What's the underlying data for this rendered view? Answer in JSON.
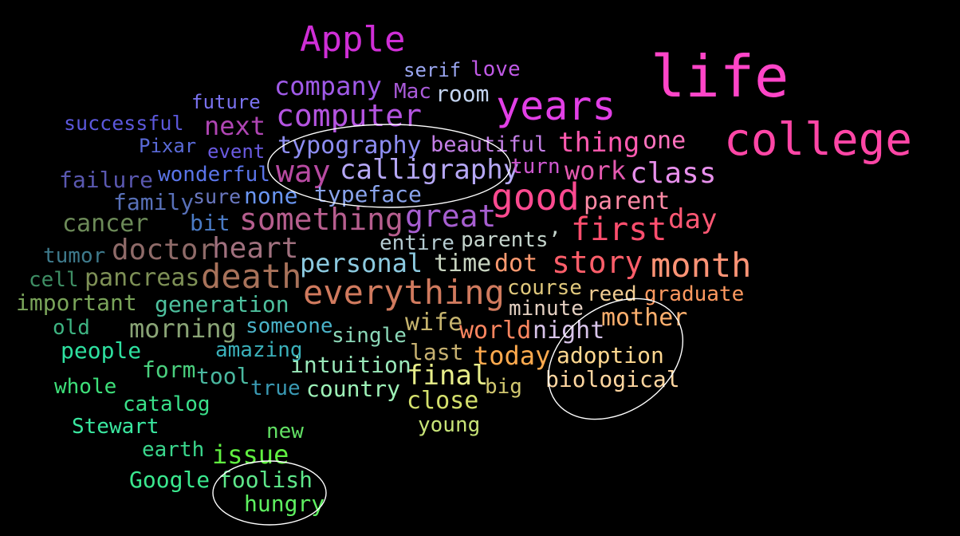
{
  "background_color": "#000000",
  "highlight_color": "#ffffff",
  "words": [
    {
      "text": "life",
      "color": "#ff45c8"
    },
    {
      "text": "college",
      "color": "#ff46a6"
    },
    {
      "text": "Apple",
      "color": "#cf2ed6"
    },
    {
      "text": "years",
      "color": "#e23fe6"
    },
    {
      "text": "serif",
      "color": "#9aa6f0"
    },
    {
      "text": "love",
      "color": "#c05ae6"
    },
    {
      "text": "company",
      "color": "#a05ae8"
    },
    {
      "text": "Mac",
      "color": "#a95ad8"
    },
    {
      "text": "room",
      "color": "#c4d4f0"
    },
    {
      "text": "future",
      "color": "#7a72f0"
    },
    {
      "text": "computer",
      "color": "#b454e0"
    },
    {
      "text": "successful",
      "color": "#5c58dc"
    },
    {
      "text": "next",
      "color": "#b045b4"
    },
    {
      "text": "thing",
      "color": "#ff5ab0"
    },
    {
      "text": "one",
      "color": "#ff72be"
    },
    {
      "text": "Pixar",
      "color": "#5a6ad8"
    },
    {
      "text": "event",
      "color": "#6a5ae0"
    },
    {
      "text": "typography",
      "color": "#8e8ef2"
    },
    {
      "text": "beautiful",
      "color": "#c580e8"
    },
    {
      "text": "failure",
      "color": "#5a58b0"
    },
    {
      "text": "wonderful",
      "color": "#5a74e8"
    },
    {
      "text": "way",
      "color": "#b84aa2"
    },
    {
      "text": "calligraphy",
      "color": "#b6a8f6"
    },
    {
      "text": "turn",
      "color": "#cf58d0"
    },
    {
      "text": "work",
      "color": "#e45ab0"
    },
    {
      "text": "class",
      "color": "#e890ec"
    },
    {
      "text": "family",
      "color": "#5870b8"
    },
    {
      "text": "sure",
      "color": "#6a78c0"
    },
    {
      "text": "none",
      "color": "#6a96f2"
    },
    {
      "text": "typeface",
      "color": "#8aa4ec"
    },
    {
      "text": "good",
      "color": "#ff4a90"
    },
    {
      "text": "parent",
      "color": "#ff8aa6"
    },
    {
      "text": "cancer",
      "color": "#6c8a58"
    },
    {
      "text": "bit",
      "color": "#4a7ac4"
    },
    {
      "text": "something",
      "color": "#b65e8e"
    },
    {
      "text": "great",
      "color": "#a65ed0"
    },
    {
      "text": "first",
      "color": "#ff4e6e"
    },
    {
      "text": "day",
      "color": "#ff5874"
    },
    {
      "text": "tumor",
      "color": "#3e7a8c"
    },
    {
      "text": "doctor",
      "color": "#8e6a68"
    },
    {
      "text": "heart",
      "color": "#a0707e"
    },
    {
      "text": "entire",
      "color": "#b6ccd2"
    },
    {
      "text": "parents’",
      "color": "#c4d4cc"
    },
    {
      "text": "cell",
      "color": "#3e8e64"
    },
    {
      "text": "pancreas",
      "color": "#7e9056"
    },
    {
      "text": "death",
      "color": "#a8725a"
    },
    {
      "text": "personal",
      "color": "#8ccae0"
    },
    {
      "text": "time",
      "color": "#c8d4c0"
    },
    {
      "text": "dot",
      "color": "#ff9a70"
    },
    {
      "text": "story",
      "color": "#ff5e6a"
    },
    {
      "text": "month",
      "color": "#ff9476"
    },
    {
      "text": "important",
      "color": "#7aa45a"
    },
    {
      "text": "generation",
      "color": "#4ec09e"
    },
    {
      "text": "everything",
      "color": "#d07a5e"
    },
    {
      "text": "course",
      "color": "#e0c87c"
    },
    {
      "text": "reed",
      "color": "#f0cc92"
    },
    {
      "text": "graduate",
      "color": "#ff9a60"
    },
    {
      "text": "minute",
      "color": "#e4d0c2"
    },
    {
      "text": "old",
      "color": "#3eb482"
    },
    {
      "text": "morning",
      "color": "#8aa476"
    },
    {
      "text": "someone",
      "color": "#4ab2c8"
    },
    {
      "text": "single",
      "color": "#8cd8b8"
    },
    {
      "text": "wife",
      "color": "#c6b46e"
    },
    {
      "text": "world",
      "color": "#ff8660"
    },
    {
      "text": "night",
      "color": "#d8c4ea"
    },
    {
      "text": "mother",
      "color": "#ffb06e"
    },
    {
      "text": "people",
      "color": "#2ee0a0"
    },
    {
      "text": "amazing",
      "color": "#3ab0ba"
    },
    {
      "text": "last",
      "color": "#c6b070"
    },
    {
      "text": "today",
      "color": "#ffaa4e"
    },
    {
      "text": "adoption",
      "color": "#ffd890"
    },
    {
      "text": "form",
      "color": "#4ad07e"
    },
    {
      "text": "tool",
      "color": "#4ab8a0"
    },
    {
      "text": "intuition",
      "color": "#9ae8ba"
    },
    {
      "text": "final",
      "color": "#e8ee8a"
    },
    {
      "text": "biological",
      "color": "#ffd6a0"
    },
    {
      "text": "whole",
      "color": "#3ee07a"
    },
    {
      "text": "true",
      "color": "#3a9ab4"
    },
    {
      "text": "country",
      "color": "#9ef2b8"
    },
    {
      "text": "big",
      "color": "#d2c870"
    },
    {
      "text": "close",
      "color": "#d4e06c"
    },
    {
      "text": "catalog",
      "color": "#3ae08a"
    },
    {
      "text": "Stewart",
      "color": "#3ae8a0"
    },
    {
      "text": "young",
      "color": "#c8e478"
    },
    {
      "text": "new",
      "color": "#62e064"
    },
    {
      "text": "earth",
      "color": "#3ad68c"
    },
    {
      "text": "issue",
      "color": "#60f040"
    },
    {
      "text": "Google",
      "color": "#3ae88e"
    },
    {
      "text": "foolish",
      "color": "#5ee88a"
    },
    {
      "text": "hungry",
      "color": "#5ef060"
    }
  ]
}
